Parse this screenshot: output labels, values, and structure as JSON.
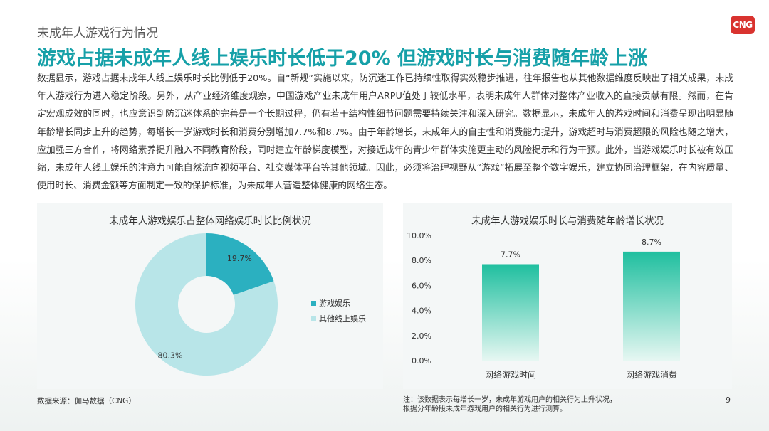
{
  "header": {
    "section_label": "未成年人游戏行为情况",
    "logo_text": "CNG",
    "headline": "游戏占据未成年人线上娱乐时长低于20%  但游戏时长与消费随年龄上涨"
  },
  "body_text": "数据显示，游戏占据未成年人线上娱乐时长比例低于20%。自“新规”实施以来，防沉迷工作已持续性取得实效稳步推进，往年报告也从其他数据维度反映出了相关成果，未成年人游戏行为进入稳定阶段。另外，从产业经济维度观察，中国游戏产业未成年用户ARPU值处于较低水平，表明未成年人群体对整体产业收入的直接贡献有限。然而，在肯定宏观成效的同时，也应意识到防沉迷体系的完善是一个长期过程，仍有若干结构性细节问题需要持续关注和深入研究。数据显示，未成年人的游戏时间和消费呈现出明显随年龄增长同步上升的趋势，每增长一岁游戏时长和消费分别增加7.7%和8.7%。由于年龄增长，未成年人的自主性和消费能力提升，游戏超时与消费超限的风险也随之增大，应加强三方合作，将网络素养提升融入不同教育阶段，同时建立年龄梯度模型，对接近成年的青少年群体实施更主动的风险提示和行为干预。此外，当游戏娱乐时长被有效压缩，未成年人线上娱乐的注意力可能自然流向视频平台、社交媒体平台等其他领域。因此，必须将治理视野从“游戏”拓展至整个数字娱乐，建立协同治理框架，在内容质量、使用时长、消费金额等方面制定一致的保护标准，为未成年人营造整体健康的网络生态。",
  "colors": {
    "accent": "#16a0a8",
    "dark_teal": "#2bb0c0",
    "light_teal": "#b8e5e8",
    "bar_top": "#1fbf9f",
    "bar_bottom": "#e6f7f2"
  },
  "chart_data": [
    {
      "type": "pie",
      "title": "未成年人游戏娱乐占整体网络娱乐时长比例状况",
      "categories": [
        "游戏娱乐",
        "其他线上娱乐"
      ],
      "values": [
        19.7,
        80.3
      ],
      "value_labels": [
        "19.7%",
        "80.3%"
      ],
      "legend": "right",
      "donut": true
    },
    {
      "type": "bar",
      "title": "未成年人游戏娱乐时长与消费随年龄增长状况",
      "categories": [
        "网络游戏时间",
        "网络游戏消费"
      ],
      "values": [
        7.7,
        8.7
      ],
      "value_labels": [
        "7.7%",
        "8.7%"
      ],
      "ylim": [
        0,
        10
      ],
      "yticks": [
        "0.0%",
        "2.0%",
        "4.0%",
        "6.0%",
        "8.0%",
        "10.0%"
      ],
      "grid": false
    }
  ],
  "footer": {
    "source": "数据来源：伽马数据（CNG）",
    "note_line1": "注：该数据表示每增长一岁，未成年游戏用户的相关行为上升状况，",
    "note_line2": "根据分年龄段未成年游戏用户的相关行为进行测算。",
    "page_number": "9"
  }
}
